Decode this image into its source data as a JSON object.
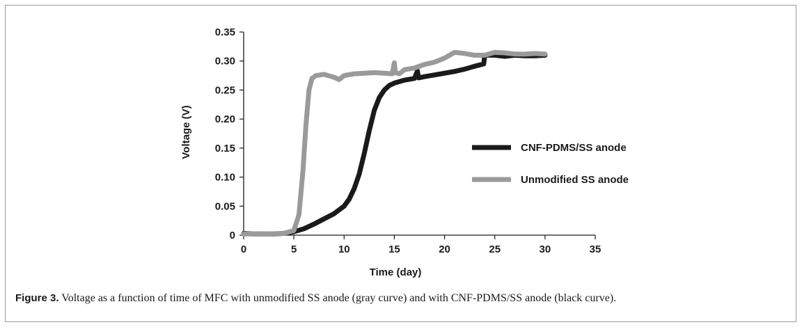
{
  "caption": {
    "label": "Figure 3.",
    "text": " Voltage as a function of time of MFC with unmodified SS anode (gray curve) and with CNF-PDMS/SS anode (black curve)."
  },
  "chart_data": {
    "type": "line",
    "title": "",
    "xlabel": "Time (day)",
    "ylabel": "Voltage (V)",
    "xlim": [
      0,
      35
    ],
    "ylim": [
      0,
      0.35
    ],
    "xticks": [
      0,
      5,
      10,
      15,
      20,
      25,
      30,
      35
    ],
    "yticks": [
      0,
      0.05,
      0.1,
      0.15,
      0.2,
      0.25,
      0.3,
      0.35
    ],
    "ytick_labels": [
      "0",
      "0.05",
      "0.10",
      "0.15",
      "0.20",
      "0.25",
      "0.30",
      "0.35"
    ],
    "xtick_labels": [
      "0",
      "5",
      "10",
      "15",
      "20",
      "25",
      "30",
      "35"
    ],
    "grid": false,
    "legend_position": "center-right",
    "series": [
      {
        "name": "CNF-PDMS/SS anode",
        "color": "#1a1a1a",
        "points": [
          [
            0,
            0.003
          ],
          [
            1,
            0.002
          ],
          [
            2,
            0.002
          ],
          [
            3,
            0.002
          ],
          [
            4,
            0.003
          ],
          [
            5,
            0.006
          ],
          [
            6,
            0.011
          ],
          [
            7,
            0.019
          ],
          [
            8,
            0.028
          ],
          [
            9,
            0.037
          ],
          [
            10,
            0.05
          ],
          [
            10.5,
            0.062
          ],
          [
            11,
            0.08
          ],
          [
            11.5,
            0.105
          ],
          [
            12,
            0.14
          ],
          [
            12.5,
            0.18
          ],
          [
            13,
            0.215
          ],
          [
            13.5,
            0.237
          ],
          [
            14,
            0.25
          ],
          [
            14.5,
            0.258
          ],
          [
            15,
            0.262
          ],
          [
            16,
            0.267
          ],
          [
            17,
            0.27
          ],
          [
            17.3,
            0.283
          ],
          [
            17.4,
            0.271
          ],
          [
            18,
            0.273
          ],
          [
            19,
            0.276
          ],
          [
            20,
            0.279
          ],
          [
            21,
            0.282
          ],
          [
            22,
            0.286
          ],
          [
            23,
            0.291
          ],
          [
            23.9,
            0.295
          ],
          [
            24,
            0.31
          ],
          [
            25,
            0.31
          ],
          [
            26,
            0.308
          ],
          [
            27,
            0.31
          ],
          [
            28,
            0.309
          ],
          [
            29,
            0.309
          ],
          [
            30,
            0.31
          ]
        ]
      },
      {
        "name": "Unmodified SS anode",
        "color": "#9a9a9a",
        "points": [
          [
            0,
            0.002
          ],
          [
            2,
            0.002
          ],
          [
            4,
            0.003
          ],
          [
            5,
            0.008
          ],
          [
            5.5,
            0.035
          ],
          [
            5.9,
            0.11
          ],
          [
            6.2,
            0.19
          ],
          [
            6.5,
            0.25
          ],
          [
            6.8,
            0.27
          ],
          [
            7.2,
            0.275
          ],
          [
            8,
            0.277
          ],
          [
            9,
            0.272
          ],
          [
            9.5,
            0.268
          ],
          [
            10,
            0.275
          ],
          [
            11,
            0.278
          ],
          [
            12,
            0.279
          ],
          [
            13,
            0.28
          ],
          [
            14,
            0.279
          ],
          [
            14.8,
            0.278
          ],
          [
            15,
            0.297
          ],
          [
            15.1,
            0.28
          ],
          [
            15.5,
            0.278
          ],
          [
            16,
            0.285
          ],
          [
            17,
            0.288
          ],
          [
            18,
            0.294
          ],
          [
            19,
            0.298
          ],
          [
            20,
            0.305
          ],
          [
            21,
            0.315
          ],
          [
            22,
            0.313
          ],
          [
            23,
            0.31
          ],
          [
            24,
            0.31
          ],
          [
            25,
            0.315
          ],
          [
            26,
            0.314
          ],
          [
            27,
            0.312
          ],
          [
            28,
            0.312
          ],
          [
            29,
            0.313
          ],
          [
            30,
            0.312
          ]
        ]
      }
    ]
  }
}
